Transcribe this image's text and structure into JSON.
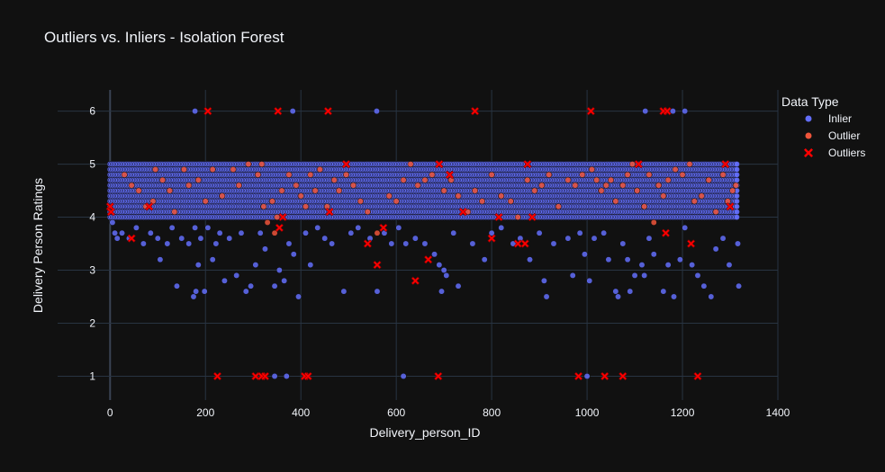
{
  "chart_data": {
    "type": "scatter",
    "title": "Outliers vs. Inliers - Isolation Forest",
    "xlabel": "Delivery_person_ID",
    "ylabel": "Delivery Person Ratings",
    "xlim": [
      -110,
      1400
    ],
    "ylim": [
      0.55,
      6.4
    ],
    "x_ticks": [
      0,
      200,
      400,
      600,
      800,
      1000,
      1200,
      1400
    ],
    "y_ticks": [
      1,
      2,
      3,
      4,
      5,
      6
    ],
    "grid": true,
    "legend": {
      "title": "Data Type",
      "position": "top-right",
      "entries": [
        {
          "label": "Inlier",
          "color": "#636efa",
          "marker": "circle"
        },
        {
          "label": "Outlier",
          "color": "#ef553b",
          "marker": "circle"
        },
        {
          "label": "Outliers",
          "color": "#ff0000",
          "marker": "x"
        }
      ]
    },
    "series": [
      {
        "name": "Inlier",
        "color": "#636efa",
        "band": {
          "x_range": [
            0,
            1316
          ],
          "y_values": [
            4.0,
            4.1,
            4.2,
            4.3,
            4.4,
            4.5,
            4.6,
            4.7,
            4.8,
            4.9,
            5.0
          ]
        },
        "points": [
          [
            5,
            3.9
          ],
          [
            10,
            3.7
          ],
          [
            15,
            3.6
          ],
          [
            25,
            3.7
          ],
          [
            40,
            3.6
          ],
          [
            55,
            3.8
          ],
          [
            70,
            3.5
          ],
          [
            85,
            3.7
          ],
          [
            100,
            3.6
          ],
          [
            105,
            3.2
          ],
          [
            120,
            3.5
          ],
          [
            130,
            3.8
          ],
          [
            140,
            2.7
          ],
          [
            150,
            3.6
          ],
          [
            165,
            3.5
          ],
          [
            175,
            2.5
          ],
          [
            178,
            3.8
          ],
          [
            180,
            2.6
          ],
          [
            185,
            3.1
          ],
          [
            190,
            3.6
          ],
          [
            198,
            2.6
          ],
          [
            205,
            3.8
          ],
          [
            215,
            3.2
          ],
          [
            222,
            3.5
          ],
          [
            230,
            3.7
          ],
          [
            240,
            2.8
          ],
          [
            250,
            3.6
          ],
          [
            265,
            2.9
          ],
          [
            275,
            3.7
          ],
          [
            285,
            2.6
          ],
          [
            295,
            2.7
          ],
          [
            305,
            3.1
          ],
          [
            315,
            3.7
          ],
          [
            325,
            3.4
          ],
          [
            345,
            2.7
          ],
          [
            355,
            3.0
          ],
          [
            365,
            2.8
          ],
          [
            375,
            3.5
          ],
          [
            385,
            3.3
          ],
          [
            395,
            2.5
          ],
          [
            410,
            3.7
          ],
          [
            420,
            3.1
          ],
          [
            435,
            3.8
          ],
          [
            450,
            3.6
          ],
          [
            465,
            3.5
          ],
          [
            490,
            2.6
          ],
          [
            505,
            3.7
          ],
          [
            520,
            3.8
          ],
          [
            545,
            3.6
          ],
          [
            560,
            2.6
          ],
          [
            575,
            3.7
          ],
          [
            590,
            3.5
          ],
          [
            605,
            3.8
          ],
          [
            620,
            3.5
          ],
          [
            640,
            3.6
          ],
          [
            660,
            3.5
          ],
          [
            680,
            3.3
          ],
          [
            690,
            3.1
          ],
          [
            695,
            2.6
          ],
          [
            700,
            3.0
          ],
          [
            705,
            2.9
          ],
          [
            720,
            3.7
          ],
          [
            730,
            2.7
          ],
          [
            760,
            3.5
          ],
          [
            785,
            3.2
          ],
          [
            800,
            3.7
          ],
          [
            820,
            3.8
          ],
          [
            845,
            3.5
          ],
          [
            860,
            3.6
          ],
          [
            880,
            3.2
          ],
          [
            900,
            3.7
          ],
          [
            910,
            2.8
          ],
          [
            915,
            2.5
          ],
          [
            930,
            3.5
          ],
          [
            960,
            3.6
          ],
          [
            970,
            2.9
          ],
          [
            985,
            3.7
          ],
          [
            995,
            3.3
          ],
          [
            1005,
            2.8
          ],
          [
            1015,
            3.6
          ],
          [
            1035,
            3.7
          ],
          [
            1045,
            3.2
          ],
          [
            1060,
            2.6
          ],
          [
            1065,
            2.5
          ],
          [
            1075,
            3.5
          ],
          [
            1085,
            3.2
          ],
          [
            1090,
            2.6
          ],
          [
            1100,
            2.9
          ],
          [
            1115,
            3.1
          ],
          [
            1120,
            2.9
          ],
          [
            1130,
            3.6
          ],
          [
            1140,
            3.3
          ],
          [
            1160,
            2.6
          ],
          [
            1170,
            3.1
          ],
          [
            1182,
            2.5
          ],
          [
            1195,
            3.2
          ],
          [
            1205,
            3.8
          ],
          [
            1220,
            3.1
          ],
          [
            1232,
            2.9
          ],
          [
            1245,
            2.7
          ],
          [
            1260,
            2.5
          ],
          [
            1270,
            3.4
          ],
          [
            1285,
            3.6
          ],
          [
            1298,
            3.1
          ],
          [
            1316,
            3.5
          ],
          [
            1318,
            2.7
          ],
          [
            178,
            6.0
          ],
          [
            383,
            6.0
          ],
          [
            559,
            6.0
          ],
          [
            1122,
            6.0
          ],
          [
            1180,
            6.0
          ],
          [
            1205,
            6.0
          ],
          [
            345,
            1.0
          ],
          [
            370,
            1.0
          ],
          [
            615,
            1.0
          ],
          [
            1000,
            1.0
          ]
        ]
      },
      {
        "name": "Outlier",
        "color": "#ef553b",
        "points": [
          [
            30,
            4.8
          ],
          [
            45,
            4.6
          ],
          [
            60,
            4.5
          ],
          [
            75,
            4.2
          ],
          [
            90,
            4.3
          ],
          [
            95,
            4.9
          ],
          [
            110,
            4.7
          ],
          [
            125,
            4.5
          ],
          [
            135,
            4.1
          ],
          [
            155,
            4.9
          ],
          [
            165,
            4.6
          ],
          [
            185,
            4.7
          ],
          [
            200,
            4.3
          ],
          [
            215,
            4.9
          ],
          [
            235,
            4.4
          ],
          [
            258,
            4.9
          ],
          [
            270,
            4.6
          ],
          [
            290,
            5.0
          ],
          [
            310,
            4.8
          ],
          [
            318,
            5.0
          ],
          [
            322,
            4.2
          ],
          [
            330,
            3.9
          ],
          [
            340,
            4.3
          ],
          [
            345,
            3.7
          ],
          [
            350,
            4.0
          ],
          [
            360,
            4.5
          ],
          [
            375,
            4.8
          ],
          [
            390,
            4.6
          ],
          [
            400,
            4.4
          ],
          [
            410,
            4.2
          ],
          [
            420,
            4.8
          ],
          [
            430,
            4.5
          ],
          [
            440,
            4.9
          ],
          [
            455,
            4.2
          ],
          [
            470,
            4.7
          ],
          [
            480,
            4.5
          ],
          [
            495,
            4.8
          ],
          [
            510,
            4.6
          ],
          [
            525,
            4.3
          ],
          [
            540,
            4.1
          ],
          [
            560,
            3.7
          ],
          [
            585,
            4.4
          ],
          [
            600,
            4.3
          ],
          [
            615,
            4.7
          ],
          [
            630,
            5.0
          ],
          [
            645,
            4.6
          ],
          [
            660,
            4.7
          ],
          [
            675,
            4.8
          ],
          [
            700,
            4.5
          ],
          [
            715,
            4.7
          ],
          [
            730,
            4.4
          ],
          [
            750,
            4.1
          ],
          [
            765,
            4.5
          ],
          [
            780,
            4.3
          ],
          [
            800,
            4.8
          ],
          [
            820,
            4.4
          ],
          [
            840,
            4.3
          ],
          [
            855,
            4.0
          ],
          [
            875,
            4.7
          ],
          [
            890,
            4.5
          ],
          [
            905,
            4.6
          ],
          [
            920,
            4.8
          ],
          [
            940,
            4.2
          ],
          [
            960,
            4.7
          ],
          [
            975,
            4.6
          ],
          [
            990,
            4.8
          ],
          [
            1010,
            4.9
          ],
          [
            1020,
            4.7
          ],
          [
            1030,
            4.5
          ],
          [
            1040,
            4.6
          ],
          [
            1050,
            4.7
          ],
          [
            1060,
            4.3
          ],
          [
            1075,
            4.6
          ],
          [
            1085,
            4.8
          ],
          [
            1095,
            5.0
          ],
          [
            1105,
            4.5
          ],
          [
            1120,
            4.2
          ],
          [
            1130,
            4.8
          ],
          [
            1140,
            3.9
          ],
          [
            1150,
            4.6
          ],
          [
            1160,
            4.4
          ],
          [
            1170,
            4.7
          ],
          [
            1185,
            4.9
          ],
          [
            1200,
            4.8
          ],
          [
            1215,
            5.0
          ],
          [
            1225,
            4.3
          ],
          [
            1240,
            4.4
          ],
          [
            1255,
            4.7
          ],
          [
            1270,
            4.1
          ],
          [
            1285,
            4.8
          ],
          [
            1295,
            4.3
          ],
          [
            1305,
            4.5
          ],
          [
            1312,
            4.6
          ]
        ]
      },
      {
        "name": "Outliers",
        "color": "#ff0000",
        "points": [
          [
            0,
            4.2
          ],
          [
            2,
            4.1
          ],
          [
            45,
            3.6
          ],
          [
            82,
            4.2
          ],
          [
            205,
            6.0
          ],
          [
            225,
            1.0
          ],
          [
            305,
            1.0
          ],
          [
            318,
            1.0
          ],
          [
            325,
            1.0
          ],
          [
            352,
            6.0
          ],
          [
            355,
            3.8
          ],
          [
            362,
            4.0
          ],
          [
            408,
            1.0
          ],
          [
            415,
            1.0
          ],
          [
            457,
            6.0
          ],
          [
            460,
            4.1
          ],
          [
            495,
            5.0
          ],
          [
            540,
            3.5
          ],
          [
            560,
            3.1
          ],
          [
            573,
            3.8
          ],
          [
            640,
            2.8
          ],
          [
            667,
            3.2
          ],
          [
            688,
            1.0
          ],
          [
            690,
            5.0
          ],
          [
            712,
            4.8
          ],
          [
            740,
            4.1
          ],
          [
            765,
            6.0
          ],
          [
            800,
            3.6
          ],
          [
            815,
            4.0
          ],
          [
            855,
            3.5
          ],
          [
            870,
            3.5
          ],
          [
            875,
            5.0
          ],
          [
            885,
            4.0
          ],
          [
            982,
            1.0
          ],
          [
            1008,
            6.0
          ],
          [
            1037,
            1.0
          ],
          [
            1075,
            1.0
          ],
          [
            1108,
            5.0
          ],
          [
            1160,
            6.0
          ],
          [
            1168,
            6.0
          ],
          [
            1165,
            3.7
          ],
          [
            1218,
            3.5
          ],
          [
            1232,
            1.0
          ],
          [
            1290,
            5.0
          ],
          [
            1300,
            4.2
          ]
        ]
      }
    ]
  }
}
